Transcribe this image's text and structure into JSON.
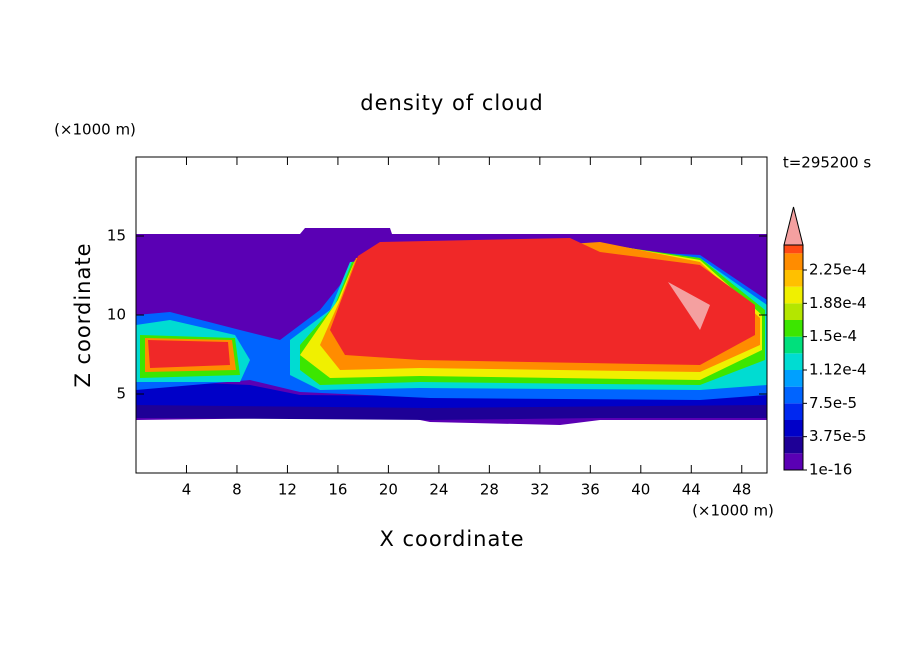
{
  "chart_data": {
    "type": "contour",
    "title": "density of cloud",
    "x_label": "X coordinate",
    "y_label": "Z coordinate",
    "x_unit": "(×1000 m)",
    "y_unit": "(×1000 m)",
    "annotation": "t=295200 s",
    "xlim": [
      0,
      50
    ],
    "xticks": [
      4,
      8,
      12,
      16,
      20,
      24,
      28,
      32,
      36,
      40,
      44,
      48
    ],
    "ylim": [
      0,
      20
    ],
    "yticks": [
      5,
      10,
      15
    ],
    "colorbar": {
      "lim": [
        1e-16,
        0.000253125
      ],
      "ticks": [
        {
          "value": 1e-16,
          "label": "1e-16"
        },
        {
          "value": 3.75e-05,
          "label": "3.75e-5"
        },
        {
          "value": 7.5e-05,
          "label": "7.5e-5"
        },
        {
          "value": 0.0001125,
          "label": "1.12e-4"
        },
        {
          "value": 0.00015,
          "label": "1.5e-4"
        },
        {
          "value": 0.0001875,
          "label": "1.88e-4"
        },
        {
          "value": 0.000225,
          "label": "2.25e-4"
        }
      ],
      "colors": [
        "#5a00b4",
        "#1e0096",
        "#0000c8",
        "#0028f0",
        "#0064ff",
        "#00a0ff",
        "#00dcd2",
        "#00e07c",
        "#3ce600",
        "#b4e600",
        "#f0f000",
        "#ffc000",
        "#ff8c00",
        "#ff4a14",
        "#f02828"
      ],
      "extend_color": "#f4a0a0"
    }
  }
}
